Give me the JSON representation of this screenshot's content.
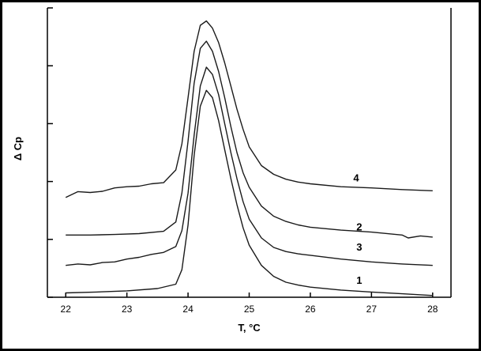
{
  "chart_data": {
    "type": "line",
    "title": "",
    "xlabel": "T, °C",
    "ylabel": "Δ Cp",
    "xlim": [
      21.7,
      28.3
    ],
    "ylim": [
      0,
      10
    ],
    "grid": false,
    "x_ticks": [
      22,
      23,
      24,
      25,
      26,
      27,
      28
    ],
    "x_tick_labels": [
      "22",
      "23",
      "24",
      "25",
      "26",
      "27",
      "28"
    ],
    "y_ticks": [
      0,
      2,
      4,
      6,
      8,
      10
    ],
    "y_tick_labels_shown": false,
    "series": [
      {
        "name": "4",
        "x": [
          22.0,
          22.2,
          22.4,
          22.6,
          22.8,
          23.0,
          23.2,
          23.4,
          23.6,
          23.8,
          23.9,
          24.0,
          24.1,
          24.2,
          24.3,
          24.4,
          24.5,
          24.6,
          24.7,
          24.8,
          24.9,
          25.0,
          25.2,
          25.4,
          25.6,
          25.8,
          26.0,
          26.5,
          27.0,
          27.5,
          28.0
        ],
        "y": [
          3.45,
          3.65,
          3.62,
          3.66,
          3.78,
          3.82,
          3.84,
          3.92,
          3.96,
          4.4,
          5.3,
          6.9,
          8.5,
          9.4,
          9.55,
          9.3,
          8.8,
          8.1,
          7.3,
          6.5,
          5.8,
          5.2,
          4.55,
          4.25,
          4.08,
          3.98,
          3.92,
          3.82,
          3.78,
          3.72,
          3.68
        ]
      },
      {
        "name": "2",
        "x": [
          22.0,
          22.4,
          22.8,
          23.2,
          23.6,
          23.8,
          23.9,
          24.0,
          24.1,
          24.2,
          24.3,
          24.4,
          24.5,
          24.6,
          24.7,
          24.8,
          24.9,
          25.0,
          25.2,
          25.4,
          25.6,
          25.8,
          26.0,
          26.5,
          27.0,
          27.5,
          27.6,
          27.8,
          28.0
        ],
        "y": [
          2.15,
          2.15,
          2.17,
          2.2,
          2.28,
          2.6,
          3.6,
          5.4,
          7.4,
          8.6,
          8.85,
          8.5,
          7.8,
          6.9,
          5.9,
          5.0,
          4.3,
          3.8,
          3.15,
          2.8,
          2.62,
          2.5,
          2.42,
          2.32,
          2.25,
          2.15,
          2.05,
          2.12,
          2.08
        ]
      },
      {
        "name": "3",
        "x": [
          22.0,
          22.2,
          22.4,
          22.6,
          22.8,
          23.0,
          23.2,
          23.4,
          23.6,
          23.8,
          23.9,
          24.0,
          24.1,
          24.2,
          24.3,
          24.4,
          24.5,
          24.6,
          24.7,
          24.8,
          24.9,
          25.0,
          25.2,
          25.4,
          25.6,
          25.8,
          26.0,
          26.5,
          27.0,
          27.5,
          28.0
        ],
        "y": [
          1.1,
          1.15,
          1.12,
          1.2,
          1.22,
          1.32,
          1.38,
          1.48,
          1.55,
          1.75,
          2.3,
          3.6,
          5.6,
          7.3,
          7.95,
          7.7,
          7.0,
          6.0,
          5.0,
          4.1,
          3.3,
          2.7,
          2.05,
          1.72,
          1.58,
          1.5,
          1.45,
          1.32,
          1.22,
          1.15,
          1.1
        ]
      },
      {
        "name": "1",
        "x": [
          22.0,
          22.5,
          23.0,
          23.5,
          23.8,
          23.9,
          24.0,
          24.1,
          24.2,
          24.3,
          24.4,
          24.5,
          24.6,
          24.7,
          24.8,
          24.9,
          25.0,
          25.2,
          25.4,
          25.6,
          25.8,
          26.0,
          26.5,
          27.0,
          27.5,
          28.0
        ],
        "y": [
          0.15,
          0.18,
          0.22,
          0.3,
          0.45,
          0.95,
          2.5,
          4.9,
          6.6,
          7.15,
          6.9,
          6.1,
          5.1,
          4.1,
          3.2,
          2.4,
          1.8,
          1.1,
          0.72,
          0.52,
          0.42,
          0.35,
          0.25,
          0.18,
          0.12,
          0.06
        ]
      }
    ],
    "series_label_positions": [
      {
        "name": "4",
        "x": 26.75,
        "y": 3.9
      },
      {
        "name": "2",
        "x": 26.8,
        "y": 2.2
      },
      {
        "name": "3",
        "x": 26.8,
        "y": 1.5
      },
      {
        "name": "1",
        "x": 26.8,
        "y": 0.35
      }
    ]
  }
}
